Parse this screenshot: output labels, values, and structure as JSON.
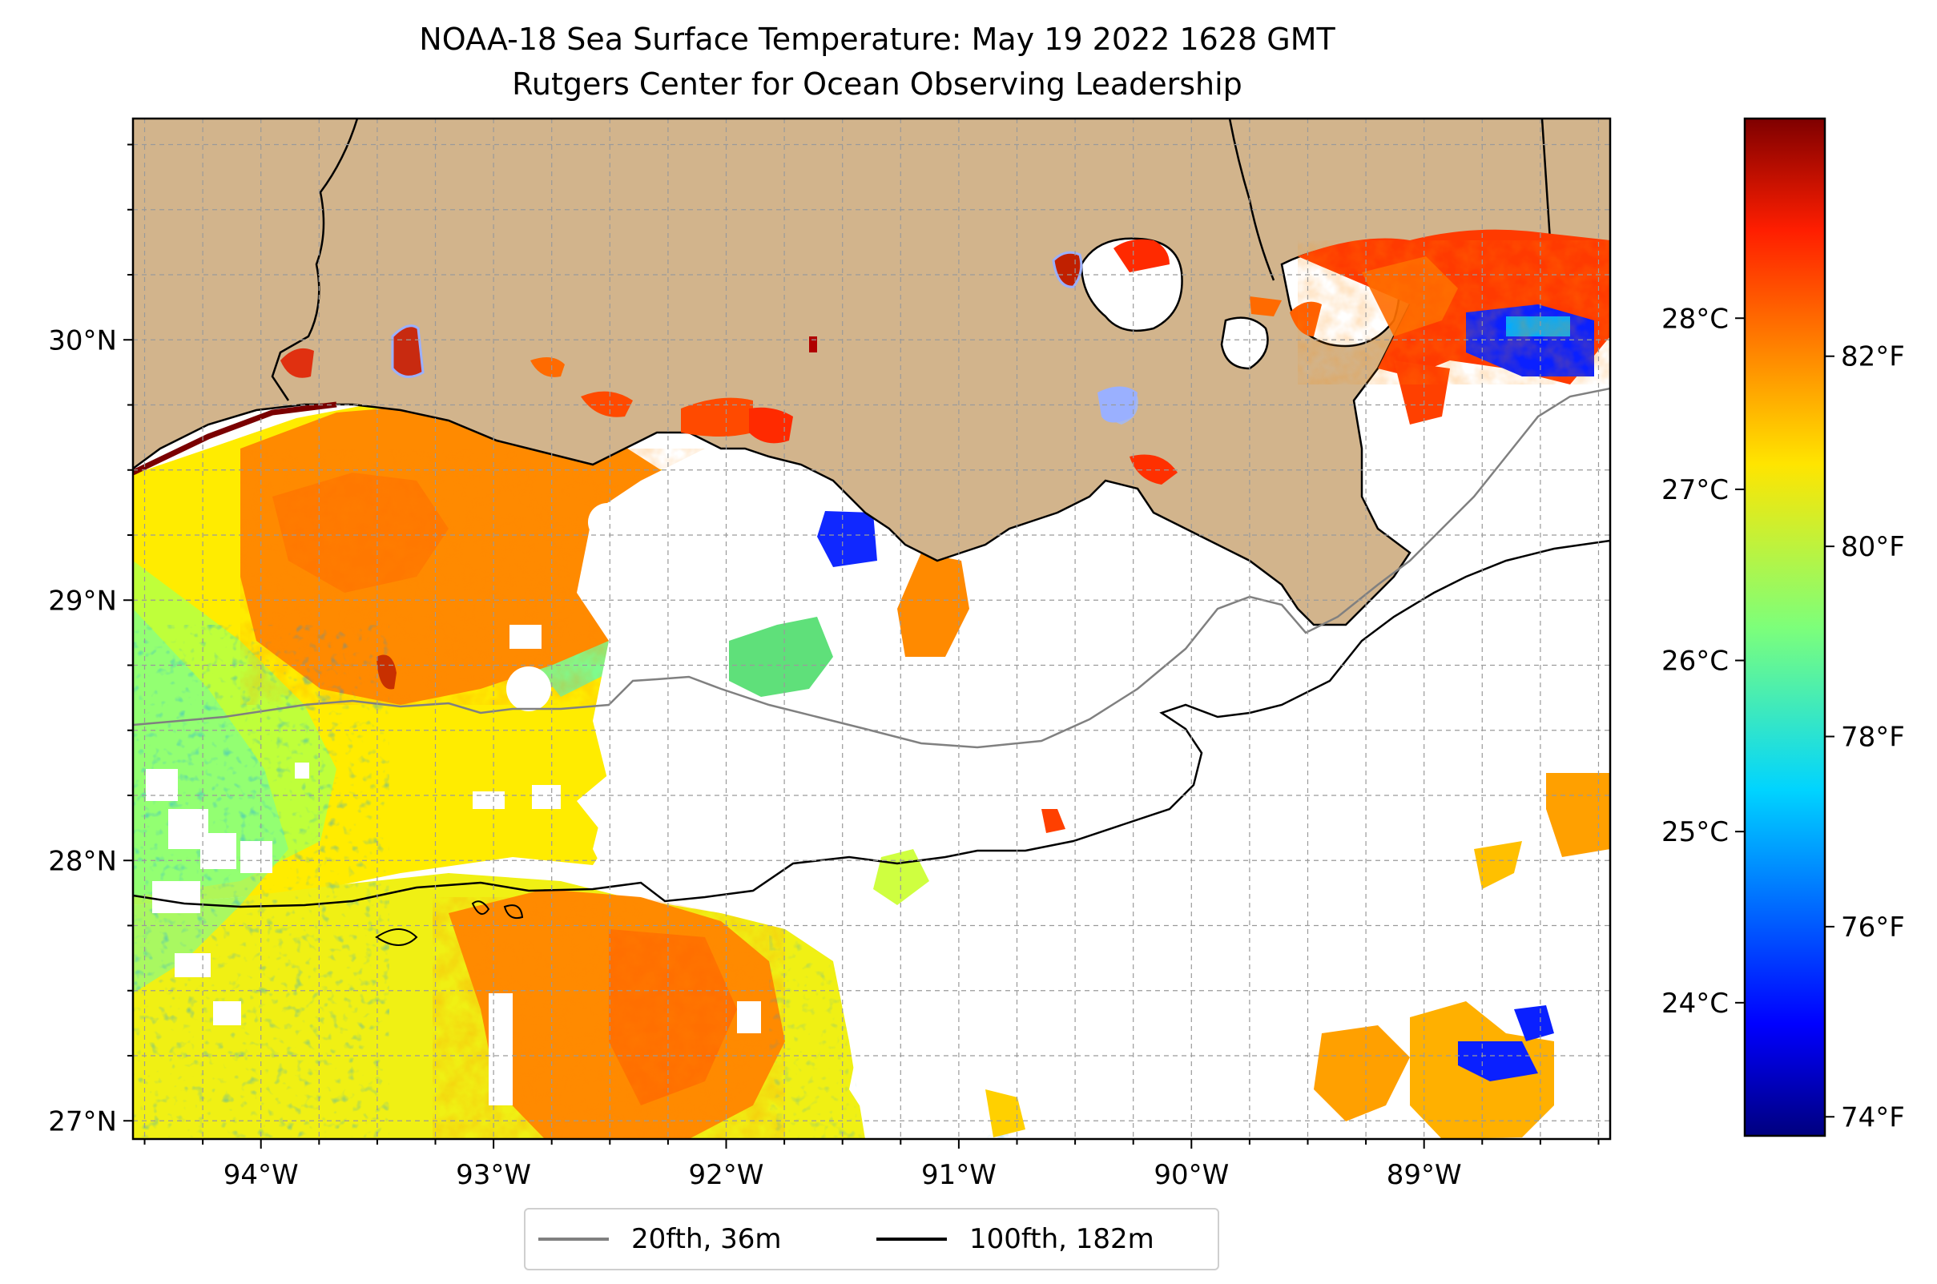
{
  "title": {
    "line1": "NOAA-18 Sea Surface Temperature: May 19 2022 1628 GMT",
    "line2": "Rutgers Center for Ocean Observing Leadership"
  },
  "map": {
    "lon_range": [
      -94.55,
      -88.2
    ],
    "lat_range": [
      26.93,
      30.85
    ],
    "lon_ticks": [
      {
        "value": -94,
        "label": "94°W"
      },
      {
        "value": -93,
        "label": "93°W"
      },
      {
        "value": -92,
        "label": "92°W"
      },
      {
        "value": -91,
        "label": "91°W"
      },
      {
        "value": -90,
        "label": "90°W"
      },
      {
        "value": -89,
        "label": "89°W"
      }
    ],
    "lat_ticks": [
      {
        "value": 27,
        "label": "27°N"
      },
      {
        "value": 28,
        "label": "28°N"
      },
      {
        "value": 29,
        "label": "29°N"
      },
      {
        "value": 30,
        "label": "30°N"
      }
    ],
    "gridlines": "dashed",
    "land_color": "#d2b48c",
    "coast_color": "#000000",
    "cloud_mask_color": "#ffffff"
  },
  "colorbar": {
    "colormap": "jet",
    "range_f": [
      73.8,
      84.5
    ],
    "fahrenheit_ticks": [
      {
        "value": 74,
        "label": "74°F"
      },
      {
        "value": 76,
        "label": "76°F"
      },
      {
        "value": 78,
        "label": "78°F"
      },
      {
        "value": 80,
        "label": "80°F"
      },
      {
        "value": 82,
        "label": "82°F"
      }
    ],
    "celsius_ticks": [
      {
        "value": 24,
        "label": "24°C"
      },
      {
        "value": 25,
        "label": "25°C"
      },
      {
        "value": 26,
        "label": "26°C"
      },
      {
        "value": 27,
        "label": "27°C"
      },
      {
        "value": 28,
        "label": "28°C"
      }
    ]
  },
  "legend": {
    "items": [
      {
        "label": "20fth, 36m",
        "color": "#808080"
      },
      {
        "label": "100fth, 182m",
        "color": "#000000"
      }
    ]
  }
}
